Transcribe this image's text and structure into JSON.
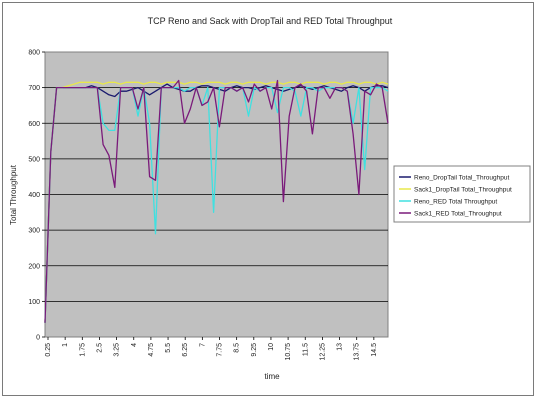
{
  "chart_data": {
    "type": "line",
    "title": "TCP Reno and Sack with DropTail and RED Total Throughput",
    "xlabel": "time",
    "ylabel": "Total Throughput",
    "ylim": [
      0,
      800
    ],
    "yticks": [
      "0",
      "100",
      "200",
      "300",
      "400",
      "500",
      "600",
      "700",
      "800"
    ],
    "xtick_labels": [
      "0.25",
      "1",
      "1.75",
      "2.5",
      "3.25",
      "4",
      "4.75",
      "5.5",
      "6.25",
      "7",
      "7.75",
      "8.5",
      "9.25",
      "10",
      "10.75",
      "11.5",
      "12.25",
      "13",
      "13.75",
      "14.5"
    ],
    "x": [
      0.25,
      0.5,
      0.75,
      1.0,
      1.25,
      1.5,
      1.75,
      2.0,
      2.25,
      2.5,
      2.75,
      3.0,
      3.25,
      3.5,
      3.75,
      4.0,
      4.25,
      4.5,
      4.75,
      5.0,
      5.25,
      5.5,
      5.75,
      6.0,
      6.25,
      6.5,
      6.75,
      7.0,
      7.25,
      7.5,
      7.75,
      8.0,
      8.25,
      8.5,
      8.75,
      9.0,
      9.25,
      9.5,
      9.75,
      10.0,
      10.25,
      10.5,
      10.75,
      11.0,
      11.25,
      11.5,
      11.75,
      12.0,
      12.25,
      12.5,
      12.75,
      13.0,
      13.25,
      13.5,
      13.75,
      14.0,
      14.25,
      14.5,
      14.75,
      15.0
    ],
    "grid": true,
    "legend_position": "right",
    "plot_background": "#c0c0c0",
    "series": [
      {
        "name": "Reno_DropTail Total_Throughput",
        "color": "#1a1a6e",
        "values": [
          40,
          520,
          700,
          700,
          700,
          700,
          700,
          700,
          705,
          700,
          690,
          680,
          675,
          690,
          690,
          695,
          700,
          690,
          680,
          690,
          700,
          710,
          700,
          695,
          690,
          690,
          700,
          705,
          705,
          700,
          695,
          690,
          700,
          705,
          700,
          700,
          695,
          700,
          705,
          700,
          695,
          690,
          695,
          700,
          705,
          700,
          695,
          700,
          705,
          700,
          695,
          690,
          700,
          705,
          700,
          690,
          700,
          705,
          705,
          700
        ]
      },
      {
        "name": "Sack1_DropTail Total_Throughput",
        "color": "#e8e84a",
        "values": [
          40,
          520,
          700,
          700,
          705,
          710,
          715,
          715,
          715,
          715,
          710,
          715,
          715,
          710,
          715,
          715,
          715,
          710,
          715,
          715,
          710,
          715,
          715,
          715,
          710,
          715,
          715,
          710,
          715,
          715,
          715,
          710,
          715,
          715,
          710,
          715,
          715,
          715,
          710,
          715,
          715,
          710,
          715,
          715,
          710,
          715,
          715,
          715,
          710,
          715,
          715,
          710,
          715,
          715,
          710,
          715,
          715,
          710,
          715,
          710
        ]
      },
      {
        "name": "Reno_RED Total Throughput",
        "color": "#40e0e0",
        "values": [
          40,
          520,
          700,
          700,
          700,
          700,
          700,
          700,
          700,
          700,
          600,
          580,
          580,
          700,
          700,
          700,
          620,
          700,
          600,
          290,
          700,
          700,
          700,
          700,
          690,
          700,
          700,
          650,
          700,
          350,
          700,
          700,
          700,
          690,
          700,
          620,
          700,
          690,
          700,
          700,
          630,
          700,
          700,
          690,
          620,
          700,
          700,
          690,
          700,
          700,
          700,
          700,
          690,
          600,
          700,
          470,
          700,
          700,
          700,
          690
        ]
      },
      {
        "name": "Sack1_RED Total_Throughput",
        "color": "#7a1a7a",
        "values": [
          40,
          520,
          700,
          700,
          700,
          700,
          700,
          700,
          700,
          700,
          540,
          510,
          420,
          700,
          700,
          700,
          640,
          700,
          450,
          440,
          700,
          700,
          700,
          720,
          600,
          640,
          700,
          650,
          660,
          700,
          590,
          700,
          700,
          690,
          700,
          660,
          710,
          690,
          700,
          640,
          720,
          380,
          620,
          700,
          710,
          690,
          570,
          700,
          700,
          670,
          700,
          700,
          690,
          570,
          400,
          690,
          680,
          710,
          700,
          600
        ]
      }
    ]
  }
}
